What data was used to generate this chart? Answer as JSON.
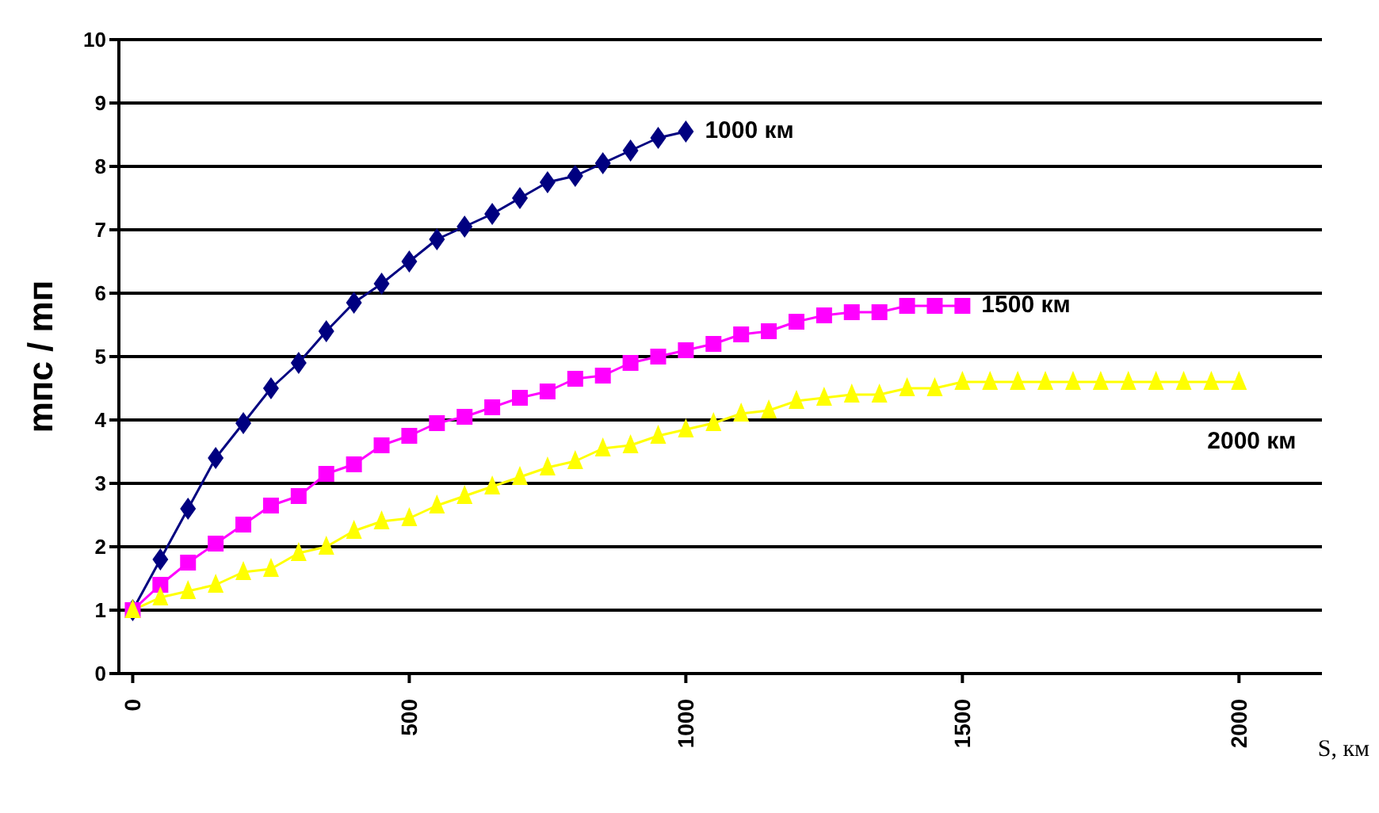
{
  "chart_data": {
    "type": "line",
    "xlabel": "S, км",
    "ylabel": "mпс / mп",
    "xlim": [
      -25,
      2150
    ],
    "xticks": [
      0,
      500,
      1000,
      1500,
      2000
    ],
    "ylim": [
      0,
      10
    ],
    "yticks": [
      0,
      1,
      2,
      3,
      4,
      5,
      6,
      7,
      8,
      9,
      10
    ],
    "grid": "y",
    "line_style": "solid",
    "series": [
      {
        "name": "1000 км",
        "color": "#000080",
        "marker": "diamond",
        "x": [
          0,
          50,
          100,
          150,
          200,
          250,
          300,
          350,
          400,
          450,
          500,
          550,
          600,
          650,
          700,
          750,
          800,
          850,
          900,
          950,
          1000
        ],
        "values": [
          1.0,
          1.8,
          2.6,
          3.4,
          3.95,
          4.5,
          4.9,
          5.4,
          5.85,
          6.15,
          6.5,
          6.85,
          7.05,
          7.25,
          7.5,
          7.75,
          7.85,
          8.05,
          8.25,
          8.45,
          8.55
        ]
      },
      {
        "name": "1500 км",
        "color": "#ff00ff",
        "marker": "square",
        "x": [
          0,
          50,
          100,
          150,
          200,
          250,
          300,
          350,
          400,
          450,
          500,
          550,
          600,
          650,
          700,
          750,
          800,
          850,
          900,
          950,
          1000,
          1050,
          1100,
          1150,
          1200,
          1250,
          1300,
          1350,
          1400,
          1450,
          1500
        ],
        "values": [
          1.0,
          1.4,
          1.75,
          2.05,
          2.35,
          2.65,
          2.8,
          3.15,
          3.3,
          3.6,
          3.75,
          3.95,
          4.05,
          4.2,
          4.35,
          4.45,
          4.65,
          4.7,
          4.9,
          5.0,
          5.1,
          5.2,
          5.35,
          5.4,
          5.55,
          5.65,
          5.7,
          5.7,
          5.8,
          5.8,
          5.8
        ]
      },
      {
        "name": "2000 км",
        "color": "#ffff00",
        "marker": "triangle",
        "x": [
          0,
          50,
          100,
          150,
          200,
          250,
          300,
          350,
          400,
          450,
          500,
          550,
          600,
          650,
          700,
          750,
          800,
          850,
          900,
          950,
          1000,
          1050,
          1100,
          1150,
          1200,
          1250,
          1300,
          1350,
          1400,
          1450,
          1500,
          1550,
          1600,
          1650,
          1700,
          1750,
          1800,
          1850,
          1900,
          1950,
          2000
        ],
        "values": [
          1.0,
          1.2,
          1.3,
          1.4,
          1.6,
          1.65,
          1.9,
          2.0,
          2.25,
          2.4,
          2.45,
          2.65,
          2.8,
          2.95,
          3.1,
          3.25,
          3.35,
          3.55,
          3.6,
          3.75,
          3.85,
          3.95,
          4.1,
          4.15,
          4.3,
          4.35,
          4.4,
          4.4,
          4.5,
          4.5,
          4.6,
          4.6,
          4.6,
          4.6,
          4.6,
          4.6,
          4.6,
          4.6,
          4.6,
          4.6,
          4.6
        ]
      }
    ]
  }
}
